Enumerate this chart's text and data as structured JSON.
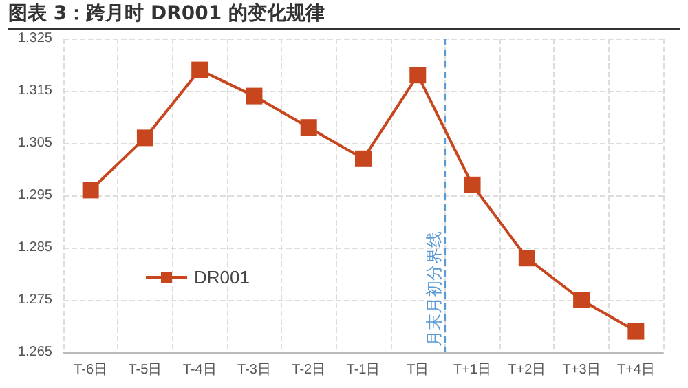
{
  "chart_data": {
    "type": "line",
    "title": "图表 3：跨月时 DR001 的变化规律",
    "categories": [
      "T-6日",
      "T-5日",
      "T-4日",
      "T-3日",
      "T-2日",
      "T-1日",
      "T日",
      "T+1日",
      "T+2日",
      "T+3日",
      "T+4日"
    ],
    "series": [
      {
        "name": "DR001",
        "color": "#c8461e",
        "values": [
          1.296,
          1.306,
          1.319,
          1.314,
          1.308,
          1.302,
          1.318,
          1.297,
          1.283,
          1.275,
          1.269
        ]
      }
    ],
    "ylim": [
      1.265,
      1.325
    ],
    "yticks": [
      1.265,
      1.275,
      1.285,
      1.295,
      1.305,
      1.315,
      1.325
    ],
    "ref_lines": [
      {
        "axis": "x",
        "value": "T日",
        "label": "月末月初分界线",
        "color": "#5b9bd5",
        "line_style": "dashed"
      }
    ],
    "grid": true,
    "legend": "left",
    "marker": "square",
    "line_style": "solid"
  }
}
